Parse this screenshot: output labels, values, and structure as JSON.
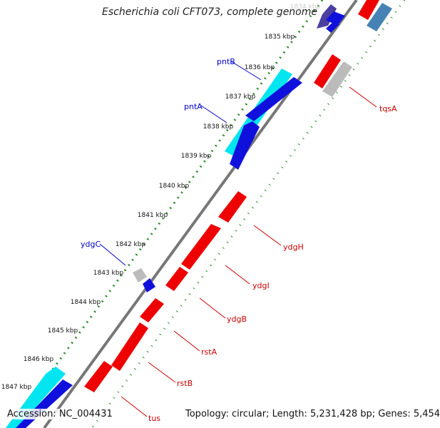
{
  "header": {
    "title": "Escherichia coli CFT073, complete genome"
  },
  "footer": {
    "accession": "Accession: NC_004431",
    "summary": "Topology: circular; Length: 5,231,428 bp; Genes: 5,454"
  },
  "colors": {
    "forward_cds": "#0000ee",
    "forward_rna": "#00e5f0",
    "reverse_cds": "#ee0000",
    "other": "#b4b4b4",
    "axis": "#777777",
    "tick_dots": "#2a8a2a",
    "forward_label": "#0000cc",
    "reverse_label": "#cc0000"
  },
  "ticks": [
    "1834 kbp",
    "1835 kbp",
    "1836 kbp",
    "1837 kbp",
    "1838 kbp",
    "1839 kbp",
    "1840 kbp",
    "1841 kbp",
    "1842 kbp",
    "1843 kbp",
    "1844 kbp",
    "1845 kbp",
    "1846 kbp",
    "1847 kbp"
  ],
  "forward_labels": [
    "pntB",
    "pntA",
    "ydgC"
  ],
  "reverse_labels": [
    "tqsA",
    "ydgH",
    "ydgI",
    "ydgB",
    "rstA",
    "rstB",
    "tus"
  ]
}
